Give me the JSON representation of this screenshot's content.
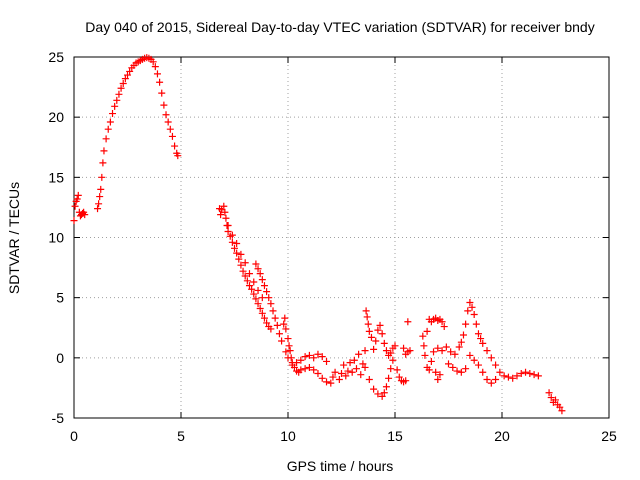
{
  "chart_data": {
    "type": "scatter",
    "title": "Day 040 of 2015, Sidereal Day-to-day VTEC variation (SDTVAR) for receiver bndy",
    "xlabel": "GPS time / hours",
    "ylabel": "SDTVAR / TECUs",
    "xlim": [
      0,
      25
    ],
    "ylim": [
      -5,
      25
    ],
    "xticks": [
      "0",
      "5",
      "10",
      "15",
      "20",
      "25"
    ],
    "yticks": [
      "-5",
      "0",
      "5",
      "10",
      "15",
      "20",
      "25"
    ],
    "grid": true,
    "marker": "+",
    "color": "#ff0000",
    "series": [
      {
        "name": "SDTVAR",
        "points": [
          [
            0.0,
            11.4
          ],
          [
            0.05,
            12.6
          ],
          [
            0.1,
            13.0
          ],
          [
            0.15,
            13.2
          ],
          [
            0.2,
            13.5
          ],
          [
            0.25,
            12.1
          ],
          [
            0.3,
            11.8
          ],
          [
            0.35,
            11.9
          ],
          [
            0.4,
            12.0
          ],
          [
            0.45,
            12.1
          ],
          [
            0.5,
            11.9
          ],
          [
            1.1,
            12.4
          ],
          [
            1.15,
            12.8
          ],
          [
            1.2,
            13.4
          ],
          [
            1.25,
            14.0
          ],
          [
            1.3,
            15.0
          ],
          [
            1.35,
            16.2
          ],
          [
            1.4,
            17.2
          ],
          [
            1.5,
            18.2
          ],
          [
            1.6,
            19.0
          ],
          [
            1.7,
            19.6
          ],
          [
            1.8,
            20.3
          ],
          [
            1.9,
            20.9
          ],
          [
            2.0,
            21.4
          ],
          [
            2.1,
            21.9
          ],
          [
            2.2,
            22.4
          ],
          [
            2.3,
            22.8
          ],
          [
            2.4,
            23.2
          ],
          [
            2.5,
            23.5
          ],
          [
            2.6,
            23.8
          ],
          [
            2.7,
            24.1
          ],
          [
            2.8,
            24.3
          ],
          [
            2.9,
            24.5
          ],
          [
            3.0,
            24.6
          ],
          [
            3.1,
            24.7
          ],
          [
            3.2,
            24.8
          ],
          [
            3.3,
            24.9
          ],
          [
            3.4,
            24.95
          ],
          [
            3.5,
            24.9
          ],
          [
            3.6,
            24.8
          ],
          [
            3.7,
            24.6
          ],
          [
            3.8,
            24.2
          ],
          [
            3.9,
            23.6
          ],
          [
            4.0,
            22.9
          ],
          [
            4.1,
            22.0
          ],
          [
            4.2,
            21.0
          ],
          [
            4.3,
            20.2
          ],
          [
            4.4,
            19.6
          ],
          [
            4.5,
            19.0
          ],
          [
            4.6,
            18.4
          ],
          [
            4.7,
            17.6
          ],
          [
            4.8,
            17.0
          ],
          [
            4.85,
            16.8
          ],
          [
            6.8,
            12.4
          ],
          [
            6.85,
            11.9
          ],
          [
            6.9,
            12.3
          ],
          [
            7.0,
            12.6
          ],
          [
            7.05,
            12.1
          ],
          [
            7.1,
            11.6
          ],
          [
            7.15,
            11.0
          ],
          [
            7.2,
            10.5
          ],
          [
            7.3,
            10.1
          ],
          [
            7.4,
            9.6
          ],
          [
            7.5,
            9.1
          ],
          [
            7.6,
            8.7
          ],
          [
            7.7,
            8.2
          ],
          [
            7.8,
            7.7
          ],
          [
            7.9,
            7.2
          ],
          [
            8.0,
            6.8
          ],
          [
            8.1,
            6.4
          ],
          [
            8.2,
            6.0
          ],
          [
            8.3,
            5.7
          ],
          [
            8.4,
            5.3
          ],
          [
            8.5,
            4.9
          ],
          [
            8.6,
            4.5
          ],
          [
            8.7,
            4.1
          ],
          [
            8.8,
            3.7
          ],
          [
            8.9,
            3.3
          ],
          [
            9.0,
            2.9
          ],
          [
            9.1,
            2.6
          ],
          [
            9.2,
            2.4
          ],
          [
            7.2,
            11.0
          ],
          [
            7.4,
            10.2
          ],
          [
            7.6,
            9.5
          ],
          [
            7.8,
            8.6
          ],
          [
            8.0,
            7.9
          ],
          [
            8.2,
            7.0
          ],
          [
            8.4,
            6.3
          ],
          [
            8.6,
            5.6
          ],
          [
            8.8,
            5.0
          ],
          [
            8.5,
            7.8
          ],
          [
            8.6,
            7.4
          ],
          [
            8.7,
            7.0
          ],
          [
            8.8,
            6.5
          ],
          [
            8.9,
            6.0
          ],
          [
            9.0,
            5.5
          ],
          [
            9.1,
            5.0
          ],
          [
            9.2,
            4.5
          ],
          [
            9.3,
            3.9
          ],
          [
            9.4,
            3.3
          ],
          [
            9.5,
            2.7
          ],
          [
            9.6,
            2.0
          ],
          [
            9.7,
            1.4
          ],
          [
            9.8,
            2.8
          ],
          [
            9.85,
            3.3
          ],
          [
            9.9,
            2.4
          ],
          [
            10.0,
            1.6
          ],
          [
            10.05,
            1.0
          ],
          [
            10.1,
            0.6
          ],
          [
            10.15,
            0.0
          ],
          [
            10.2,
            -0.4
          ],
          [
            10.3,
            -0.8
          ],
          [
            10.4,
            -1.1
          ],
          [
            10.5,
            -1.2
          ],
          [
            9.9,
            0.5
          ],
          [
            10.0,
            0.0
          ],
          [
            10.2,
            -0.6
          ],
          [
            10.4,
            -0.4
          ],
          [
            10.6,
            -0.2
          ],
          [
            10.8,
            0.1
          ],
          [
            11.0,
            0.2
          ],
          [
            11.2,
            0.0
          ],
          [
            11.4,
            0.3
          ],
          [
            11.6,
            0.1
          ],
          [
            11.8,
            -0.3
          ],
          [
            10.6,
            -1.0
          ],
          [
            10.8,
            -0.9
          ],
          [
            11.0,
            -0.8
          ],
          [
            11.2,
            -1.0
          ],
          [
            11.4,
            -1.3
          ],
          [
            11.6,
            -1.7
          ],
          [
            11.8,
            -2.0
          ],
          [
            12.0,
            -2.1
          ],
          [
            12.1,
            -1.6
          ],
          [
            12.2,
            -1.2
          ],
          [
            12.4,
            -1.8
          ],
          [
            12.5,
            -1.3
          ],
          [
            12.6,
            -0.6
          ],
          [
            12.7,
            -1.5
          ],
          [
            12.8,
            -1.1
          ],
          [
            12.9,
            -0.4
          ],
          [
            13.0,
            -1.2
          ],
          [
            13.1,
            -0.2
          ],
          [
            13.2,
            -0.9
          ],
          [
            13.3,
            0.3
          ],
          [
            13.4,
            -1.4
          ],
          [
            13.5,
            -0.5
          ],
          [
            13.6,
            0.6
          ],
          [
            13.65,
            3.9
          ],
          [
            13.7,
            3.4
          ],
          [
            13.75,
            2.8
          ],
          [
            13.8,
            2.2
          ],
          [
            13.9,
            1.7
          ],
          [
            14.0,
            0.7
          ],
          [
            13.6,
            -0.8
          ],
          [
            13.8,
            -1.8
          ],
          [
            14.0,
            -2.6
          ],
          [
            14.2,
            -3.0
          ],
          [
            14.4,
            -3.2
          ],
          [
            14.5,
            -2.9
          ],
          [
            14.6,
            -2.4
          ],
          [
            14.7,
            -1.7
          ],
          [
            14.8,
            -0.9
          ],
          [
            14.9,
            -0.2
          ],
          [
            14.1,
            1.4
          ],
          [
            14.2,
            2.3
          ],
          [
            14.3,
            2.7
          ],
          [
            14.4,
            2.0
          ],
          [
            14.5,
            1.2
          ],
          [
            14.6,
            0.6
          ],
          [
            14.7,
            0.2
          ],
          [
            14.8,
            0.4
          ],
          [
            14.9,
            0.8
          ],
          [
            15.0,
            1.0
          ],
          [
            15.1,
            -1.0
          ],
          [
            15.2,
            -1.6
          ],
          [
            15.3,
            -1.9
          ],
          [
            15.4,
            -2.0
          ],
          [
            15.5,
            -1.9
          ],
          [
            15.4,
            0.8
          ],
          [
            15.5,
            0.3
          ],
          [
            15.6,
            0.5
          ],
          [
            15.7,
            0.6
          ],
          [
            15.6,
            3.0
          ],
          [
            16.3,
            1.8
          ],
          [
            16.35,
            1.0
          ],
          [
            16.4,
            0.2
          ],
          [
            16.5,
            -0.8
          ],
          [
            16.6,
            -1.0
          ],
          [
            16.7,
            -0.3
          ],
          [
            16.8,
            0.5
          ],
          [
            16.9,
            -1.2
          ],
          [
            17.0,
            -1.8
          ],
          [
            17.1,
            -1.4
          ],
          [
            16.5,
            2.2
          ],
          [
            16.6,
            3.2
          ],
          [
            16.7,
            3.0
          ],
          [
            16.8,
            3.2
          ],
          [
            16.9,
            3.3
          ],
          [
            17.0,
            3.1
          ],
          [
            17.1,
            3.2
          ],
          [
            17.2,
            3.0
          ],
          [
            17.3,
            2.6
          ],
          [
            17.0,
            0.8
          ],
          [
            17.2,
            0.6
          ],
          [
            17.4,
            0.9
          ],
          [
            17.6,
            0.5
          ],
          [
            17.8,
            0.3
          ],
          [
            18.0,
            0.9
          ],
          [
            18.1,
            1.3
          ],
          [
            18.2,
            1.9
          ],
          [
            18.3,
            2.8
          ],
          [
            18.4,
            3.9
          ],
          [
            18.5,
            4.6
          ],
          [
            18.6,
            4.2
          ],
          [
            18.7,
            3.6
          ],
          [
            17.5,
            -0.5
          ],
          [
            17.7,
            -0.8
          ],
          [
            17.9,
            -1.1
          ],
          [
            18.1,
            -1.2
          ],
          [
            18.3,
            -0.9
          ],
          [
            18.5,
            0.2
          ],
          [
            18.7,
            -0.2
          ],
          [
            18.9,
            -0.6
          ],
          [
            19.1,
            -1.2
          ],
          [
            19.3,
            -1.8
          ],
          [
            19.5,
            -2.1
          ],
          [
            19.7,
            -1.8
          ],
          [
            18.8,
            2.8
          ],
          [
            18.9,
            2.0
          ],
          [
            19.0,
            1.6
          ],
          [
            19.1,
            1.2
          ],
          [
            19.3,
            0.6
          ],
          [
            19.5,
            0.0
          ],
          [
            19.7,
            -0.6
          ],
          [
            19.9,
            -1.2
          ],
          [
            20.1,
            -1.5
          ],
          [
            20.3,
            -1.6
          ],
          [
            20.5,
            -1.7
          ],
          [
            20.7,
            -1.5
          ],
          [
            20.9,
            -1.3
          ],
          [
            21.1,
            -1.2
          ],
          [
            21.3,
            -1.3
          ],
          [
            21.5,
            -1.4
          ],
          [
            21.7,
            -1.5
          ],
          [
            22.2,
            -2.9
          ],
          [
            22.3,
            -3.3
          ],
          [
            22.4,
            -3.7
          ],
          [
            22.5,
            -3.5
          ],
          [
            22.6,
            -3.9
          ],
          [
            22.7,
            -4.1
          ],
          [
            22.8,
            -4.4
          ]
        ]
      }
    ]
  }
}
